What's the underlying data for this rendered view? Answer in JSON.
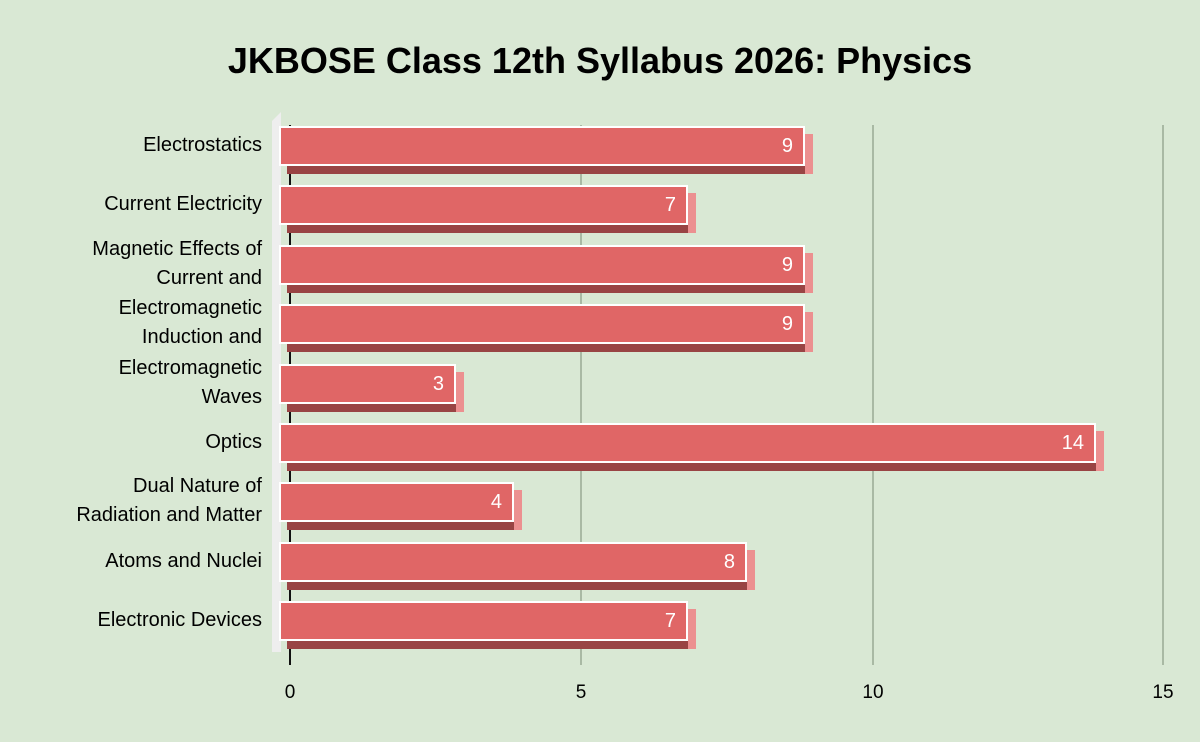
{
  "chart_data": {
    "type": "bar",
    "orientation": "horizontal",
    "style": "3d",
    "title": "JKBOSE Class 12th Syllabus 2026: Physics",
    "xlabel": "",
    "ylabel": "",
    "categories": [
      "Electrostatics",
      "Current Electricity",
      "Magnetic Effects of Current and",
      "Electromagnetic Induction and",
      "Electromagnetic Waves",
      "Optics",
      "Dual Nature of Radiation and Matter",
      "Atoms and Nuclei",
      "Electronic Devices"
    ],
    "values": [
      9,
      7,
      9,
      9,
      3,
      14,
      4,
      8,
      7
    ],
    "xlim": [
      0,
      15
    ],
    "xticks": [
      "0",
      "5",
      "10",
      "15"
    ],
    "grid": true,
    "legend": null,
    "data_labels": true,
    "bar_color": "#e06666",
    "background_color": "#d9e8d4"
  },
  "title": "JKBOSE Class 12th Syllabus 2026: Physics",
  "axis": {
    "ticks": [
      "0",
      "5",
      "10",
      "15"
    ]
  },
  "rows": [
    {
      "label_lines": [
        "Electrostatics"
      ],
      "value": "9"
    },
    {
      "label_lines": [
        "Current Electricity"
      ],
      "value": "7"
    },
    {
      "label_lines": [
        "Magnetic Effects of",
        "Current and"
      ],
      "value": "9"
    },
    {
      "label_lines": [
        "Electromagnetic",
        "Induction and"
      ],
      "value": "9"
    },
    {
      "label_lines": [
        "Electromagnetic",
        "Waves"
      ],
      "value": "3"
    },
    {
      "label_lines": [
        "Optics"
      ],
      "value": "14"
    },
    {
      "label_lines": [
        "Dual Nature of",
        "Radiation and Matter"
      ],
      "value": "4"
    },
    {
      "label_lines": [
        "Atoms and Nuclei"
      ],
      "value": "8"
    },
    {
      "label_lines": [
        "Electronic Devices"
      ],
      "value": "7"
    }
  ]
}
